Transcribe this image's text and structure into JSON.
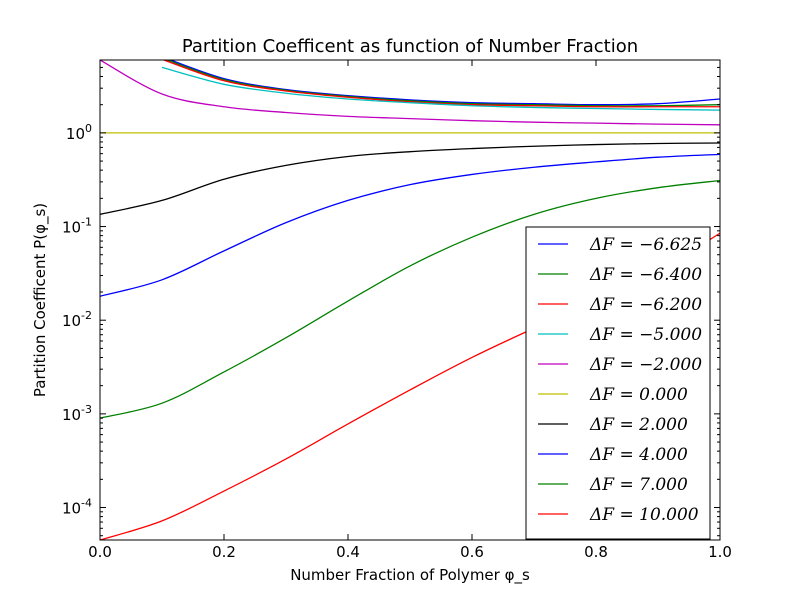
{
  "chart_data": {
    "type": "line",
    "title": "Partition Coefficent as function of Number Fraction",
    "xlabel": "Number Fraction of Polymer φ_s",
    "ylabel": "Partition Coefficent P(φ_s)",
    "xlim": [
      0.0,
      1.0
    ],
    "ylim": [
      4.5e-05,
      6.0
    ],
    "yscale": "log",
    "grid": false,
    "legend_placement": "lower-right",
    "x_ticks": [
      "0.0",
      "0.2",
      "0.4",
      "0.6",
      "0.8",
      "1.0"
    ],
    "y_ticks": [
      {
        "value": 0.0001,
        "label": "10^-4"
      },
      {
        "value": 0.001,
        "label": "10^-3"
      },
      {
        "value": 0.01,
        "label": "10^-2"
      },
      {
        "value": 0.1,
        "label": "10^-1"
      },
      {
        "value": 1,
        "label": "10^0"
      }
    ],
    "x": [
      0.0,
      0.1,
      0.2,
      0.3,
      0.4,
      0.5,
      0.6,
      0.7,
      0.8,
      0.9,
      1.0
    ],
    "series": [
      {
        "name": "ΔF = −6.625",
        "color": "#0000ff",
        "values": [
          null,
          6.5,
          3.8,
          2.9,
          2.5,
          2.25,
          2.1,
          2.05,
          2.0,
          2.05,
          2.3
        ]
      },
      {
        "name": "ΔF = −6.400",
        "color": "#008000",
        "values": [
          null,
          6.3,
          3.7,
          2.85,
          2.45,
          2.2,
          2.05,
          2.0,
          1.95,
          1.95,
          2.0
        ]
      },
      {
        "name": "ΔF = −6.200",
        "color": "#ff0000",
        "values": [
          null,
          6.1,
          3.6,
          2.8,
          2.4,
          2.15,
          2.0,
          1.95,
          1.9,
          1.9,
          1.9
        ]
      },
      {
        "name": "ΔF = −5.000",
        "color": "#00bfbf",
        "values": [
          null,
          5.0,
          3.3,
          2.65,
          2.3,
          2.1,
          1.95,
          1.87,
          1.82,
          1.78,
          1.75
        ]
      },
      {
        "name": "ΔF = −2.000",
        "color": "#bf00bf",
        "values": [
          6.0,
          2.6,
          1.9,
          1.65,
          1.5,
          1.42,
          1.35,
          1.3,
          1.27,
          1.24,
          1.22
        ]
      },
      {
        "name": "ΔF = 0.000",
        "color": "#bfbf00",
        "values": [
          1.0,
          1.0,
          1.0,
          1.0,
          1.0,
          1.0,
          1.0,
          1.0,
          1.0,
          1.0,
          1.0
        ]
      },
      {
        "name": "ΔF = 2.000",
        "color": "#000000",
        "values": [
          0.135,
          0.19,
          0.32,
          0.45,
          0.56,
          0.63,
          0.68,
          0.72,
          0.75,
          0.77,
          0.78
        ]
      },
      {
        "name": "ΔF = 4.000",
        "color": "#0000ff",
        "values": [
          0.018,
          0.027,
          0.055,
          0.11,
          0.19,
          0.28,
          0.36,
          0.43,
          0.49,
          0.55,
          0.59
        ]
      },
      {
        "name": "ΔF = 7.000",
        "color": "#008000",
        "values": [
          0.0009,
          0.0013,
          0.0028,
          0.0065,
          0.016,
          0.038,
          0.077,
          0.135,
          0.2,
          0.26,
          0.31
        ]
      },
      {
        "name": "ΔF = 10.000",
        "color": "#ff0000",
        "values": [
          4.5e-05,
          7.2e-05,
          0.00015,
          0.00033,
          0.00078,
          0.0018,
          0.004,
          0.0082,
          0.016,
          0.033,
          0.085
        ]
      }
    ]
  }
}
